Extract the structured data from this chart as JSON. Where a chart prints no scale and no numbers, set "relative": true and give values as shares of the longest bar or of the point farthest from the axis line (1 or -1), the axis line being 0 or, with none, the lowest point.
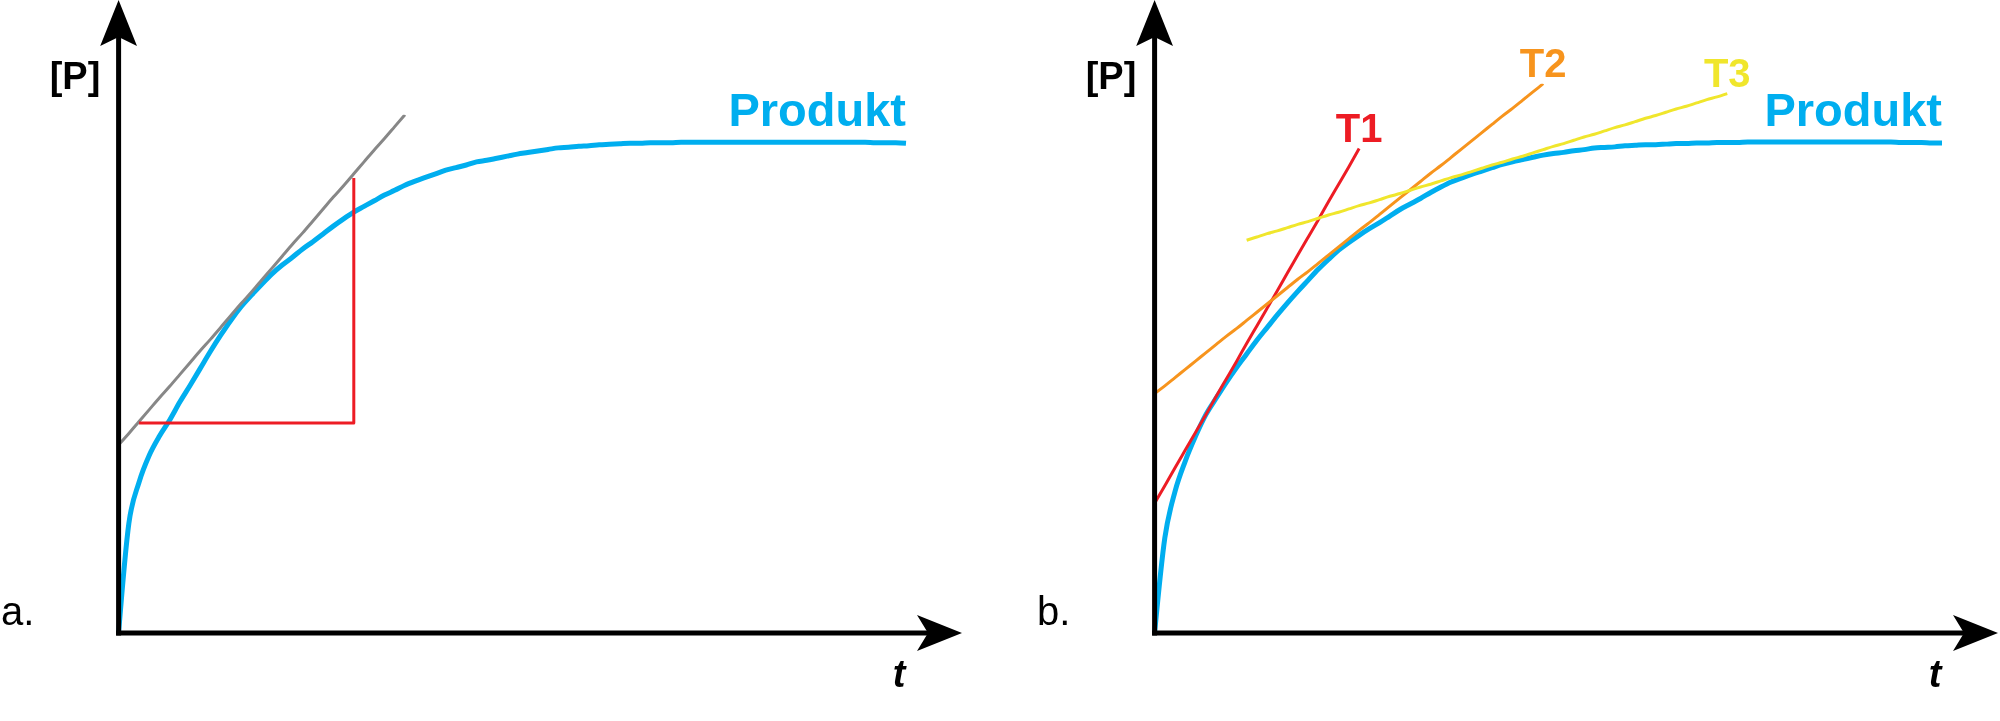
{
  "chart_data": [
    {
      "type": "line",
      "title": "a.",
      "xlabel": "t",
      "ylabel": "[P]",
      "relative": true,
      "categories": [
        null,
        null,
        null,
        null,
        null,
        null,
        null,
        null,
        null,
        null,
        null,
        null,
        null,
        null,
        null,
        null,
        null,
        null,
        null,
        null,
        null,
        null,
        null,
        null,
        null,
        null,
        null,
        null,
        null,
        null,
        null,
        null,
        null,
        null,
        null,
        null,
        null,
        null,
        null,
        null,
        null,
        null,
        null,
        null,
        null,
        null,
        null,
        null,
        null,
        null,
        null,
        null,
        null,
        null,
        null,
        null,
        null,
        null,
        null,
        null,
        null,
        null,
        null,
        null,
        null,
        null,
        null,
        null,
        null,
        null,
        null,
        null,
        null,
        null,
        null,
        null,
        null,
        null
      ],
      "series": [
        {
          "name": "Produkt",
          "color": "#00aeef",
          "values": [
            0,
            0.211,
            0.291,
            0.343,
            0.38,
            0.411,
            0.446,
            0.478,
            0.511,
            0.544,
            0.575,
            0.604,
            0.63,
            0.652,
            0.673,
            0.693,
            0.71,
            0.725,
            0.741,
            0.755,
            0.77,
            0.785,
            0.799,
            0.812,
            0.823,
            0.834,
            0.845,
            0.854,
            0.864,
            0.872,
            0.879,
            0.886,
            0.893,
            0.898,
            0.903,
            0.909,
            0.912,
            0.916,
            0.92,
            0.924,
            0.927,
            0.93,
            0.933,
            0.936,
            0.937,
            0.939,
            0.94,
            0.942,
            0.943,
            0.944,
            0.945,
            0.945,
            0.946,
            0.946,
            0.946,
            0.947,
            0.947,
            0.947,
            0.947,
            0.947,
            0.947,
            0.947,
            0.947,
            0.947,
            0.947,
            0.947,
            0.947,
            0.947,
            0.947,
            0.947,
            0.947,
            0.947,
            0.947,
            0.947,
            0.946,
            0.946,
            0.946,
            0.945
          ]
        },
        {
          "color": "#878787",
          "values": [
            0.363,
            0.385,
            0.408,
            0.431,
            0.454,
            0.476,
            0.499,
            0.522,
            0.545,
            0.567,
            0.59,
            0.613,
            0.636,
            0.658,
            0.681,
            0.704,
            0.727,
            0.75,
            0.772,
            0.795,
            0.818,
            0.841,
            0.863,
            0.886,
            0.909,
            0.932,
            0.954,
            0.977,
            1,
            null,
            null,
            null,
            null,
            null,
            null,
            null,
            null,
            null,
            null,
            null,
            null,
            null,
            null,
            null,
            null,
            null,
            null,
            null,
            null,
            null,
            null,
            null,
            null,
            null,
            null,
            null,
            null,
            null,
            null,
            null,
            null,
            null,
            null,
            null,
            null,
            null,
            null,
            null,
            null,
            null,
            null,
            null,
            null,
            null,
            null,
            null,
            null,
            null
          ]
        },
        {
          "type": "step",
          "color": "#ed1c24",
          "values": [
            null,
            null,
            0.405,
            0.405,
            0.405,
            0.405,
            0.405,
            0.405,
            0.405,
            0.405,
            0.405,
            0.405,
            0.405,
            0.405,
            0.405,
            0.405,
            0.405,
            0.405,
            0.405,
            0.405,
            0.405,
            0.405,
            0.405,
            0.878,
            null,
            null,
            null,
            null,
            null,
            null,
            null,
            null,
            null,
            null,
            null,
            null,
            null,
            null,
            null,
            null,
            null,
            null,
            null,
            null,
            null,
            null,
            null,
            null,
            null,
            null,
            null,
            null,
            null,
            null,
            null,
            null,
            null,
            null,
            null,
            null,
            null,
            null,
            null,
            null,
            null,
            null,
            null,
            null,
            null,
            null,
            null,
            null,
            null,
            null,
            null,
            null,
            null,
            null
          ]
        }
      ]
    },
    {
      "type": "line",
      "title": "b.",
      "xlabel": "t",
      "ylabel": "[P]",
      "relative": true,
      "categories": [
        null,
        null,
        null,
        null,
        null,
        null,
        null,
        null,
        null,
        null,
        null,
        null,
        null,
        null,
        null,
        null,
        null,
        null,
        null,
        null,
        null,
        null,
        null,
        null,
        null,
        null,
        null,
        null,
        null,
        null,
        null,
        null,
        null,
        null,
        null,
        null,
        null,
        null,
        null,
        null,
        null,
        null,
        null,
        null,
        null,
        null,
        null,
        null,
        null,
        null,
        null,
        null,
        null,
        null,
        null,
        null,
        null,
        null,
        null,
        null,
        null,
        null,
        null,
        null,
        null,
        null,
        null,
        null,
        null,
        null,
        null,
        null,
        null,
        null,
        null,
        null,
        null,
        null
      ],
      "series": [
        {
          "name": "Produkt",
          "color": "#00aeef",
          "values": [
            0,
            0.173,
            0.258,
            0.313,
            0.358,
            0.397,
            0.427,
            0.456,
            0.483,
            0.508,
            0.533,
            0.556,
            0.579,
            0.601,
            0.622,
            0.642,
            0.662,
            0.68,
            0.697,
            0.711,
            0.724,
            0.736,
            0.747,
            0.759,
            0.771,
            0.781,
            0.791,
            0.802,
            0.812,
            0.821,
            0.828,
            0.835,
            0.841,
            0.847,
            0.853,
            0.858,
            0.862,
            0.866,
            0.87,
            0.873,
            0.875,
            0.878,
            0.88,
            0.883,
            0.884,
            0.885,
            0.887,
            0.888,
            0.889,
            0.889,
            0.89,
            0.891,
            0.891,
            0.892,
            0.892,
            0.893,
            0.893,
            0.893,
            0.894,
            0.894,
            0.894,
            0.894,
            0.894,
            0.894,
            0.894,
            0.894,
            0.894,
            0.894,
            0.894,
            0.894,
            0.894,
            0.894,
            0.894,
            0.893,
            0.893,
            0.893,
            0.892,
            0.892
          ]
        },
        {
          "name": "T1",
          "color": "#ed1c24",
          "values": [
            0.236,
            0.268,
            0.301,
            0.333,
            0.365,
            0.397,
            0.43,
            0.462,
            0.494,
            0.527,
            0.559,
            0.591,
            0.623,
            0.656,
            0.688,
            0.72,
            0.752,
            0.785,
            0.817,
            0.849,
            0.882,
            null,
            null,
            null,
            null,
            null,
            null,
            null,
            null,
            null,
            null,
            null,
            null,
            null,
            null,
            null,
            null,
            null,
            null,
            null,
            null,
            null,
            null,
            null,
            null,
            null,
            null,
            null,
            null,
            null,
            null,
            null,
            null,
            null,
            null,
            null,
            null,
            null,
            null,
            null,
            null,
            null,
            null,
            null,
            null,
            null,
            null,
            null,
            null,
            null,
            null,
            null,
            null,
            null,
            null,
            null,
            null,
            null
          ]
        },
        {
          "name": "T2",
          "color": "#f7941d",
          "values": [
            0.436,
            0.45,
            0.465,
            0.48,
            0.495,
            0.51,
            0.525,
            0.54,
            0.554,
            0.569,
            0.584,
            0.599,
            0.614,
            0.629,
            0.644,
            0.658,
            0.673,
            0.688,
            0.703,
            0.718,
            0.733,
            0.747,
            0.762,
            0.777,
            0.792,
            0.807,
            0.822,
            0.837,
            0.851,
            0.866,
            0.881,
            0.896,
            0.911,
            0.926,
            0.941,
            0.955,
            0.97,
            0.985,
            1,
            null,
            null,
            null,
            null,
            null,
            null,
            null,
            null,
            null,
            null,
            null,
            null,
            null,
            null,
            null,
            null,
            null,
            null,
            null,
            null,
            null,
            null,
            null,
            null,
            null,
            null,
            null,
            null,
            null,
            null,
            null,
            null,
            null,
            null,
            null,
            null,
            null,
            null,
            null
          ]
        },
        {
          "name": "T3",
          "color": "#f0e62c",
          "values": [
            null,
            null,
            null,
            null,
            null,
            null,
            null,
            null,
            null,
            0.715,
            0.721,
            0.727,
            0.732,
            0.738,
            0.744,
            0.749,
            0.755,
            0.761,
            0.766,
            0.772,
            0.778,
            0.783,
            0.789,
            0.795,
            0.8,
            0.806,
            0.812,
            0.817,
            0.823,
            0.829,
            0.834,
            0.84,
            0.846,
            0.852,
            0.857,
            0.863,
            0.868,
            0.874,
            0.88,
            0.886,
            0.891,
            0.897,
            0.903,
            0.908,
            0.914,
            0.92,
            0.925,
            0.931,
            0.937,
            0.942,
            0.948,
            0.954,
            0.959,
            0.965,
            0.971,
            0.976,
            0.982,
            null,
            null,
            null,
            null,
            null,
            null,
            null,
            null,
            null,
            null,
            null,
            null,
            null,
            null,
            null,
            null,
            null,
            null,
            null,
            null,
            null
          ]
        }
      ]
    }
  ]
}
